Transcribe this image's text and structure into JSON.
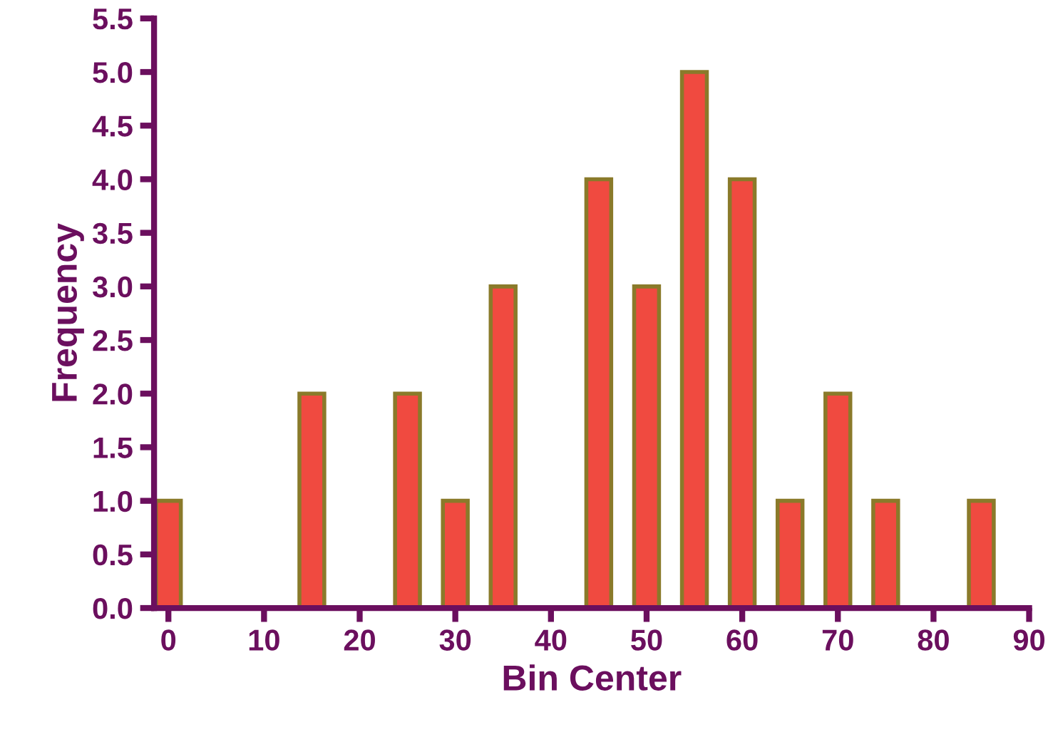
{
  "chart_data": {
    "type": "bar",
    "xlabel": "Bin Center",
    "ylabel": "Frequency",
    "x": [
      0,
      15,
      25,
      30,
      35,
      45,
      50,
      55,
      60,
      65,
      70,
      75,
      85
    ],
    "values": [
      1,
      2,
      2,
      1,
      3,
      4,
      3,
      5,
      4,
      1,
      2,
      1,
      1
    ],
    "color": "#f04a40",
    "xlim": [
      -1.5,
      90
    ],
    "xticks": [
      0,
      10,
      20,
      30,
      40,
      50,
      60,
      70,
      80,
      90
    ],
    "ylim": [
      0,
      5.5
    ],
    "yticks": [
      {
        "value": 0,
        "label": "0.0"
      },
      {
        "value": 0.5,
        "label": "0.5"
      },
      {
        "value": 1,
        "label": "1.0"
      },
      {
        "value": 1.5,
        "label": "1.5"
      },
      {
        "value": 2,
        "label": "2.0"
      },
      {
        "value": 2.5,
        "label": "2.5"
      },
      {
        "value": 3,
        "label": "3.0"
      },
      {
        "value": 3.5,
        "label": "3.5"
      },
      {
        "value": 4,
        "label": "4.0"
      },
      {
        "value": 4.5,
        "label": "4.5"
      },
      {
        "value": 5,
        "label": "5.0"
      },
      {
        "value": 5.5,
        "label": "5.5"
      }
    ],
    "grid": false,
    "legend": false
  }
}
